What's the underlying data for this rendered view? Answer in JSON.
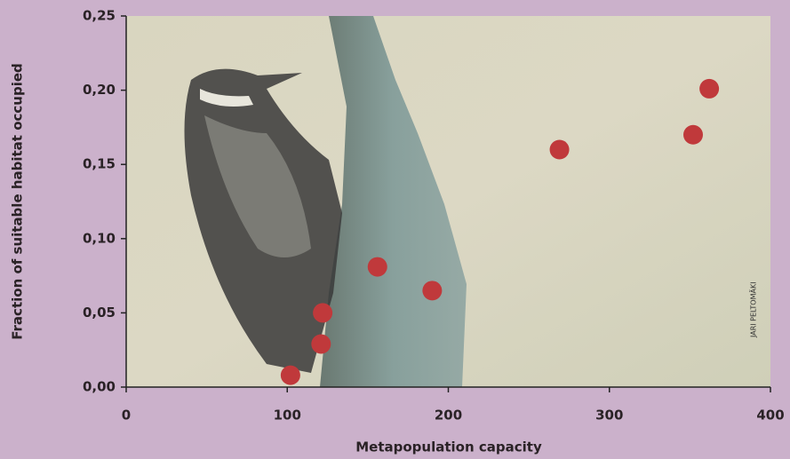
{
  "chart_data": {
    "type": "scatter",
    "x_label": "Metapopulation capacity",
    "y_label": "Fraction of suitable habitat occupied",
    "credit": "JARI PELTOMÄKI",
    "x": [
      102,
      121,
      122,
      156,
      190,
      269,
      352,
      362
    ],
    "values": [
      0.008,
      0.029,
      0.05,
      0.081,
      0.065,
      0.16,
      0.17,
      0.201
    ],
    "color": "#c0393b",
    "xlim": [
      0,
      400
    ],
    "xticks": [
      0,
      100,
      200,
      300,
      400
    ],
    "ylim": [
      0,
      0.25
    ],
    "yticks": [
      {
        "value": 0,
        "label": "0,00"
      },
      {
        "value": 0.05,
        "label": "0,05"
      },
      {
        "value": 0.1,
        "label": "0,10"
      },
      {
        "value": 0.15,
        "label": "0,15"
      },
      {
        "value": 0.2,
        "label": "0,20"
      },
      {
        "value": 0.25,
        "label": "0,25"
      }
    ]
  }
}
